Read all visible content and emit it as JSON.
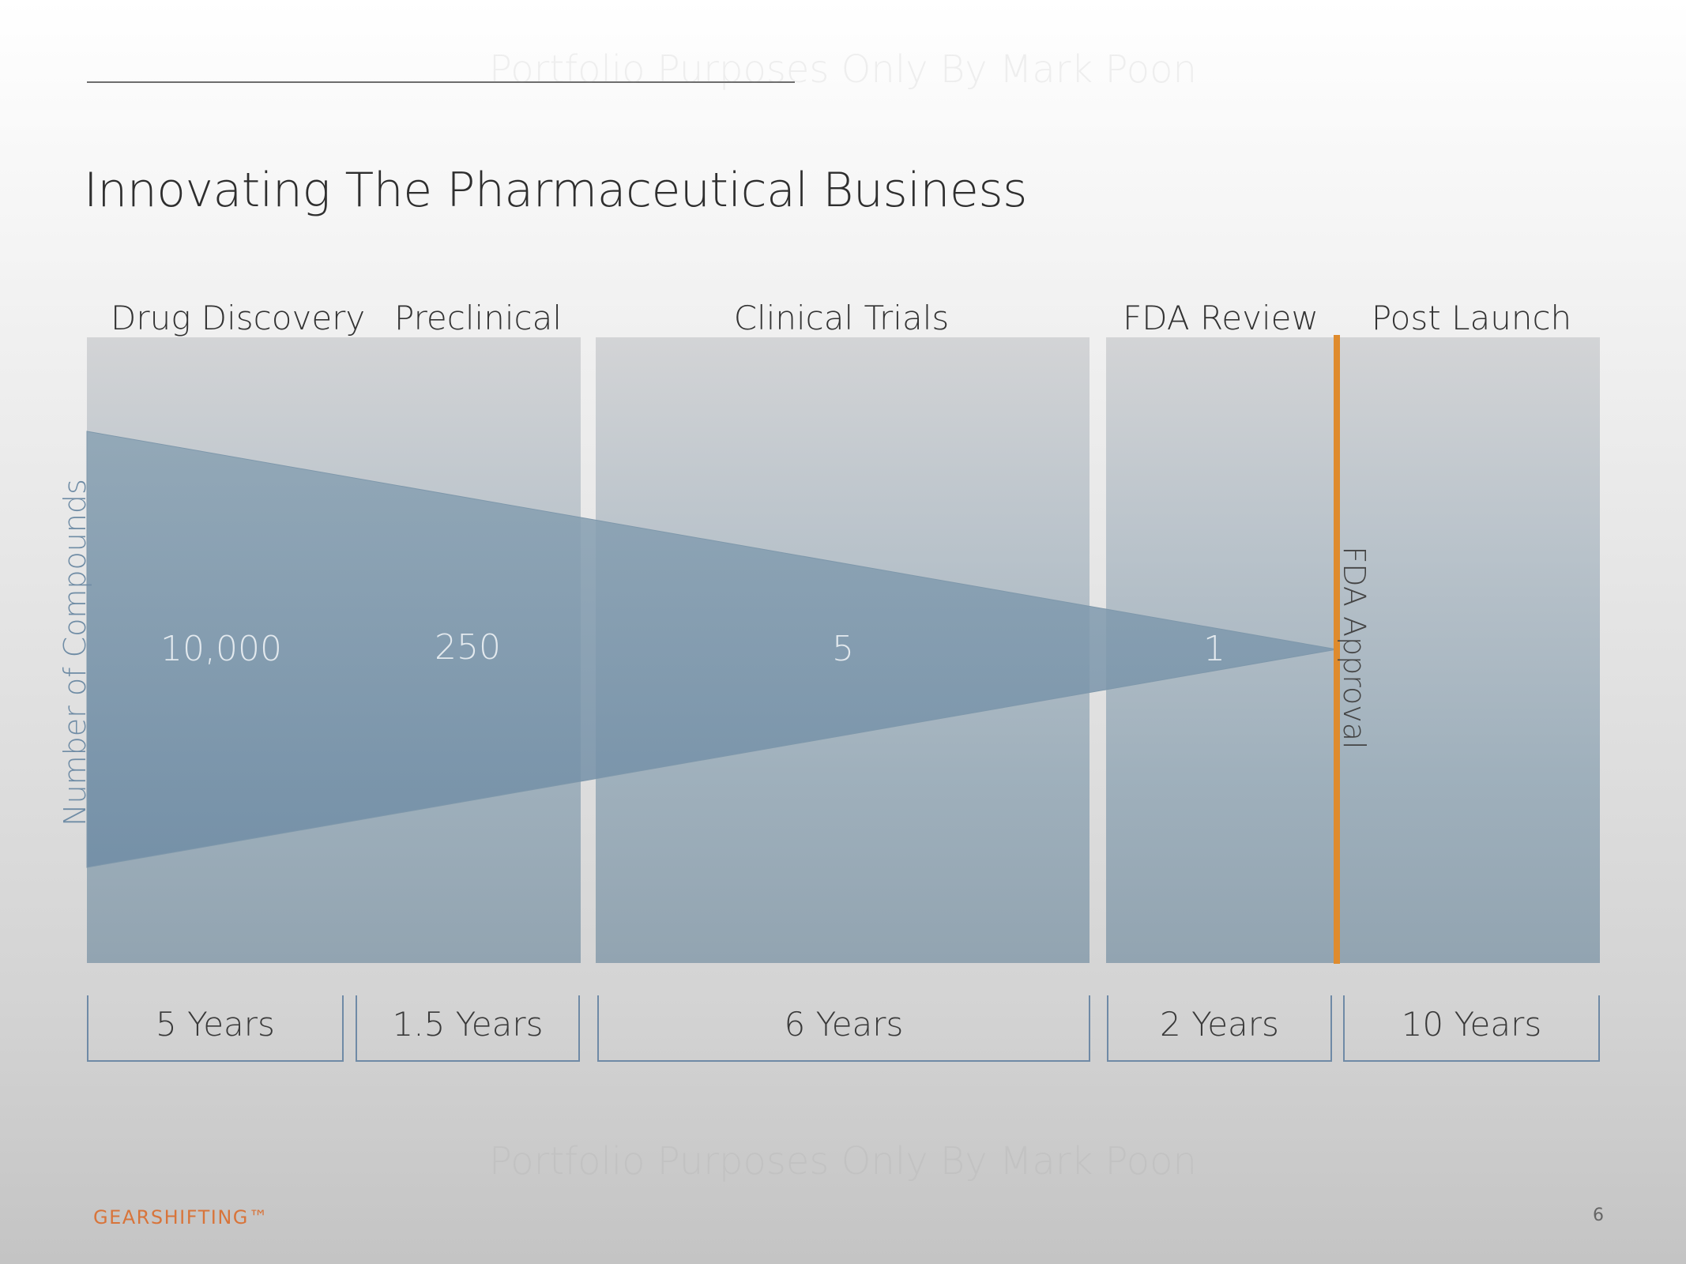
{
  "watermark": "Portfolio Purposes Only By Mark Poon",
  "title": "Innovating The Pharmaceutical Business",
  "phases": {
    "drug_discovery": "Drug Discovery",
    "preclinical": "Preclinical",
    "clinical_trials": "Clinical Trials",
    "fda_review": "FDA Review",
    "post_launch": "Post Launch"
  },
  "counts": {
    "drug_discovery": "10,000",
    "preclinical": "250",
    "clinical_trials": "5",
    "fda_review": "1"
  },
  "y_axis_label": "Number of Compounds",
  "milestone": "FDA Approval",
  "durations": {
    "drug_discovery": "5 Years",
    "preclinical": "1.5 Years",
    "clinical_trials": "6 Years",
    "fda_review": "2 Years",
    "post_launch": "10 Years"
  },
  "brand": "GEARSHIFTING™",
  "page_number": "6",
  "colors": {
    "accent_orange": "#df8b2d",
    "funnel_blue": "#6f8ca5",
    "brand_orange": "#d8743a"
  }
}
